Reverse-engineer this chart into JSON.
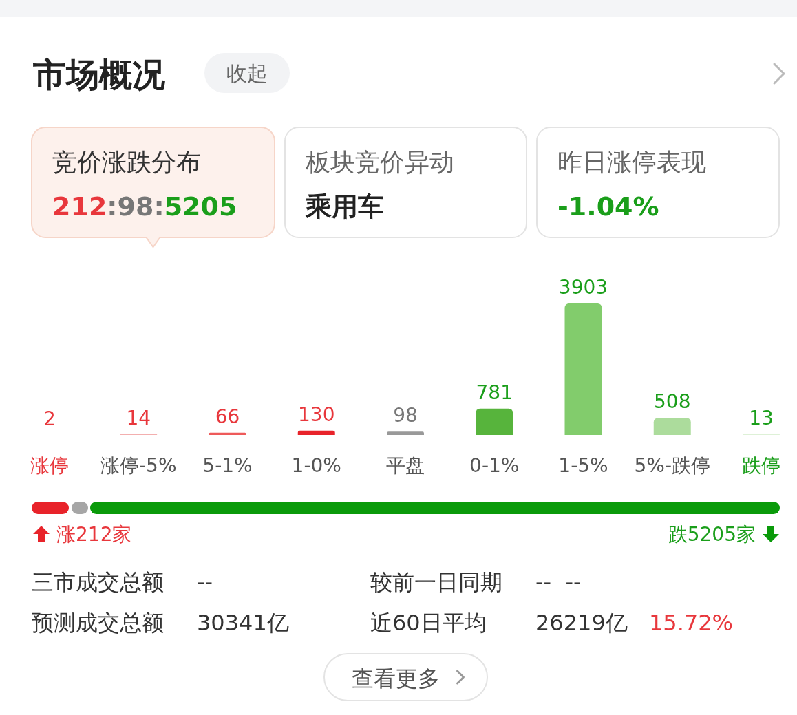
{
  "chart_data": [
    {
      "type": "other",
      "title": "市场概况",
      "annotations": [
        "收起",
        "竞价涨跌分布",
        "212:98:5205",
        "板块竞价异动",
        "乘用车",
        "昨日涨停表现",
        "-1.04%"
      ]
    },
    {
      "type": "bar",
      "categories": [
        "涨停",
        "涨停-5%",
        "5-1%",
        "1-0%",
        "平盘",
        "0-1%",
        "1-5%",
        "5%-跌停",
        "跌停"
      ],
      "values": [
        2,
        14,
        66,
        130,
        98,
        781,
        3903,
        508,
        13
      ],
      "colors": [
        "#f7c1c1",
        "#f09595",
        "#ee5a5a",
        "#e8232a",
        "#999999",
        "#57b43c",
        "#82cc6c",
        "#acdc9c",
        "#d3edca"
      ],
      "data_labels": true,
      "annotations": [
        "涨212家",
        "跌5205家"
      ]
    },
    {
      "type": "other",
      "annotations": [
        "三市成交总额",
        "--",
        "较前一日同期",
        "--  --",
        "预测成交总额",
        "30341亿",
        "近60日平均",
        "26219亿",
        "15.72%",
        "查看更多"
      ]
    }
  ]
}
